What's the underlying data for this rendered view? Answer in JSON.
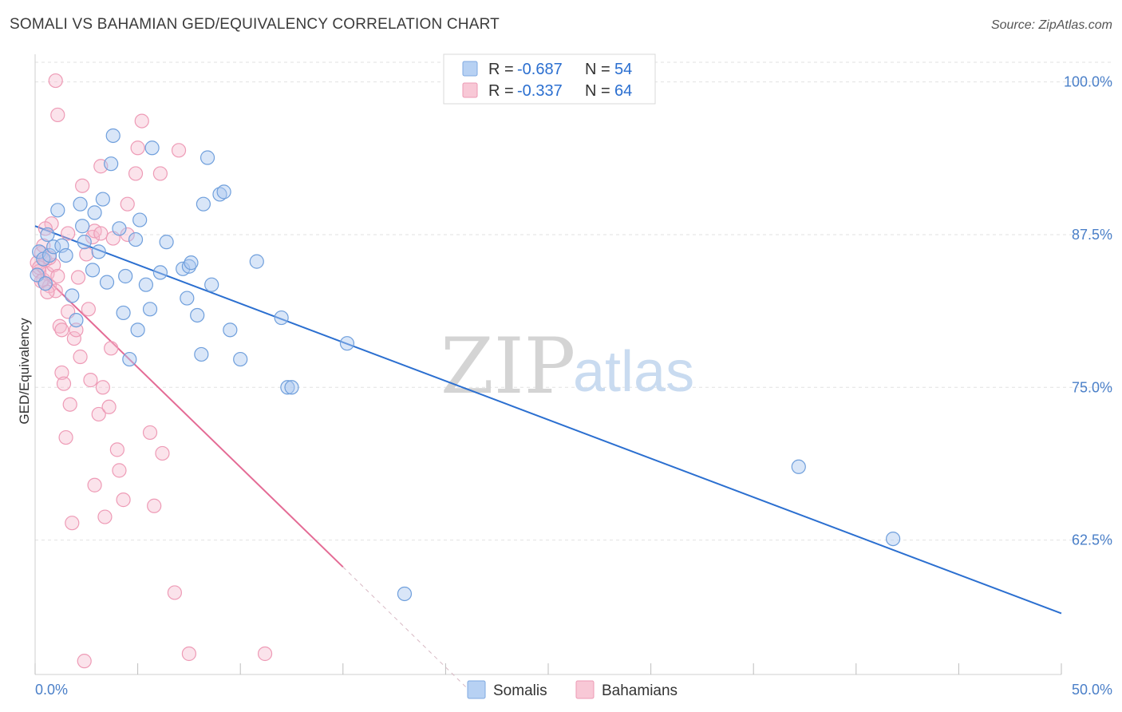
{
  "header": {
    "title": "SOMALI VS BAHAMIAN GED/EQUIVALENCY CORRELATION CHART",
    "source": "Source: ZipAtlas.com"
  },
  "legend": {
    "entries": [
      {
        "r_label": "R = ",
        "r_value": "-0.687",
        "n_label": "N = ",
        "n_value": "54",
        "color": "#a9c8f0"
      },
      {
        "r_label": "R = ",
        "r_value": "-0.337",
        "n_label": "N = ",
        "n_value": "64",
        "color": "#f5b5c8"
      }
    ]
  },
  "bottom_legend": [
    "Somalis",
    "Bahamians"
  ],
  "watermark": {
    "zip": "ZIP",
    "atlas": "atlas"
  },
  "chart_data": {
    "type": "scatter",
    "ylabel": "GED/Equivalency",
    "xlim": [
      0,
      50
    ],
    "ylim": [
      51.5,
      102
    ],
    "x_tick_labels": [
      {
        "value": 0,
        "label": "0.0%"
      },
      {
        "value": 50,
        "label": "50.0%"
      }
    ],
    "y_tick_labels": [
      {
        "value": 100,
        "label": "100.0%"
      },
      {
        "value": 87.5,
        "label": "87.5%"
      },
      {
        "value": 75,
        "label": "75.0%"
      },
      {
        "value": 62.5,
        "label": "62.5%"
      }
    ],
    "grid": true,
    "colors": {
      "Somalis": "#5b93d8",
      "Bahamians": "#ec7fa2",
      "somali_line": "#2b6fd0",
      "bahamian_line": "#e46b95"
    },
    "series": [
      {
        "name": "Somalis",
        "trend": {
          "x": [
            0,
            50
          ],
          "y": [
            88.2,
            56.5
          ]
        },
        "points": [
          [
            0.1,
            84.2
          ],
          [
            0.2,
            86.1
          ],
          [
            0.4,
            85.5
          ],
          [
            0.5,
            83.5
          ],
          [
            0.6,
            87.5
          ],
          [
            0.7,
            85.8
          ],
          [
            0.9,
            86.5
          ],
          [
            1.1,
            89.5
          ],
          [
            1.3,
            86.6
          ],
          [
            1.5,
            85.8
          ],
          [
            1.8,
            82.5
          ],
          [
            2.0,
            80.5
          ],
          [
            2.2,
            90.0
          ],
          [
            2.3,
            88.2
          ],
          [
            2.4,
            86.9
          ],
          [
            2.8,
            84.6
          ],
          [
            2.9,
            89.3
          ],
          [
            3.1,
            86.1
          ],
          [
            3.3,
            90.4
          ],
          [
            3.5,
            83.6
          ],
          [
            3.7,
            93.3
          ],
          [
            3.8,
            95.6
          ],
          [
            4.1,
            88.0
          ],
          [
            4.3,
            81.1
          ],
          [
            4.4,
            84.1
          ],
          [
            4.6,
            77.3
          ],
          [
            4.9,
            87.1
          ],
          [
            5.0,
            79.7
          ],
          [
            5.1,
            88.7
          ],
          [
            5.4,
            83.4
          ],
          [
            5.6,
            81.4
          ],
          [
            5.7,
            94.6
          ],
          [
            6.1,
            84.4
          ],
          [
            6.4,
            86.9
          ],
          [
            7.2,
            84.7
          ],
          [
            7.4,
            82.3
          ],
          [
            7.5,
            84.9
          ],
          [
            7.6,
            85.2
          ],
          [
            7.9,
            80.9
          ],
          [
            8.1,
            77.7
          ],
          [
            8.2,
            90.0
          ],
          [
            8.4,
            93.8
          ],
          [
            8.6,
            83.4
          ],
          [
            9.0,
            90.8
          ],
          [
            9.2,
            91.0
          ],
          [
            9.5,
            79.7
          ],
          [
            10.0,
            77.3
          ],
          [
            10.8,
            85.3
          ],
          [
            12.0,
            80.7
          ],
          [
            12.3,
            75.0
          ],
          [
            12.5,
            75.0
          ],
          [
            15.2,
            78.6
          ],
          [
            18.0,
            58.1
          ],
          [
            37.2,
            68.5
          ],
          [
            41.8,
            62.6
          ]
        ]
      },
      {
        "name": "Bahamians",
        "trend": {
          "x": [
            0,
            15
          ],
          "y": [
            84.8,
            60.3
          ]
        },
        "trend_ext": {
          "x": [
            15,
            21.4
          ],
          "y": [
            60.3,
            49.8
          ]
        },
        "points": [
          [
            0.1,
            85.2
          ],
          [
            0.2,
            84.5
          ],
          [
            0.3,
            86.0
          ],
          [
            0.4,
            83.8
          ],
          [
            0.5,
            85.4
          ],
          [
            0.6,
            84.3
          ],
          [
            0.7,
            83.3
          ],
          [
            0.8,
            88.4
          ],
          [
            0.9,
            85.0
          ],
          [
            1.0,
            82.9
          ],
          [
            1.1,
            84.1
          ],
          [
            1.2,
            80.0
          ],
          [
            1.3,
            79.7
          ],
          [
            1.3,
            76.2
          ],
          [
            1.4,
            75.3
          ],
          [
            1.5,
            70.9
          ],
          [
            1.6,
            87.6
          ],
          [
            1.7,
            73.6
          ],
          [
            1.8,
            63.9
          ],
          [
            1.9,
            79.0
          ],
          [
            2.0,
            79.7
          ],
          [
            2.1,
            84.0
          ],
          [
            2.2,
            77.5
          ],
          [
            2.3,
            91.5
          ],
          [
            2.4,
            52.6
          ],
          [
            2.5,
            85.9
          ],
          [
            2.6,
            81.4
          ],
          [
            2.7,
            75.6
          ],
          [
            2.8,
            87.3
          ],
          [
            2.9,
            67.0
          ],
          [
            3.1,
            72.8
          ],
          [
            3.2,
            93.1
          ],
          [
            3.3,
            75.0
          ],
          [
            3.4,
            64.4
          ],
          [
            3.6,
            73.4
          ],
          [
            3.7,
            78.2
          ],
          [
            3.8,
            87.2
          ],
          [
            4.0,
            69.9
          ],
          [
            4.1,
            68.2
          ],
          [
            4.3,
            65.8
          ],
          [
            4.5,
            87.5
          ],
          [
            4.5,
            90.0
          ],
          [
            4.9,
            92.5
          ],
          [
            5.0,
            94.6
          ],
          [
            5.2,
            96.8
          ],
          [
            5.6,
            71.3
          ],
          [
            5.8,
            65.3
          ],
          [
            6.1,
            92.5
          ],
          [
            6.2,
            69.6
          ],
          [
            6.8,
            58.2
          ],
          [
            7.0,
            94.4
          ],
          [
            7.5,
            53.2
          ],
          [
            11.2,
            53.2
          ],
          [
            1.1,
            97.3
          ],
          [
            1.0,
            100.1
          ],
          [
            0.4,
            86.6
          ],
          [
            0.3,
            83.7
          ],
          [
            0.2,
            84.8
          ],
          [
            0.6,
            82.8
          ],
          [
            1.6,
            81.2
          ],
          [
            2.9,
            87.8
          ],
          [
            3.2,
            87.6
          ],
          [
            0.5,
            88.0
          ],
          [
            0.7,
            85.6
          ]
        ]
      }
    ]
  }
}
